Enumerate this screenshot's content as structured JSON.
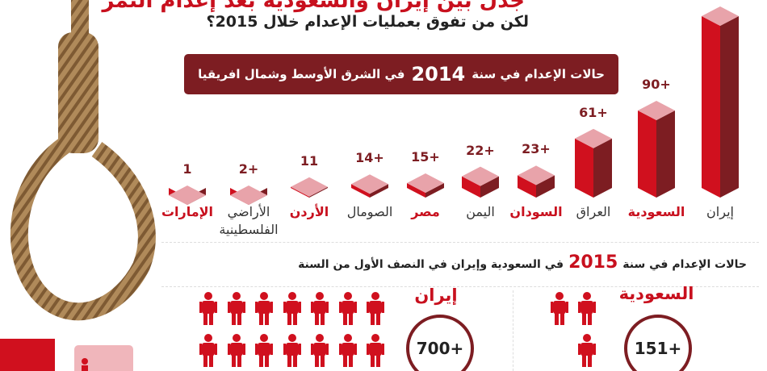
{
  "header": {
    "title": "جدل بين إيران والسعودية بعد إعدام النمر",
    "subtitle": "لكن من تفوق بعمليات الإعدام خلال 2015؟"
  },
  "banner_2014": {
    "before": "حالات الإعدام في سنة",
    "year": "2014",
    "after": "في الشرق الأوسط وشمال افريقيا"
  },
  "section_2015": {
    "before": "حالات الإعدام في سنة",
    "year": "2015",
    "after": "في السعودية وإيران في النصف الأول من السنة"
  },
  "comparison": {
    "iran": {
      "label": "إيران",
      "value": "700+",
      "icons": 14
    },
    "saudi": {
      "label": "السعودية",
      "value": "151+",
      "icons": 3
    }
  },
  "colors": {
    "red": "#d0101e",
    "dark_red": "#7d1d22",
    "pink": "#e8a3aa"
  },
  "chart_data": {
    "type": "bar",
    "title": "",
    "categories": [
      "إيران",
      "السعودية",
      "العراق",
      "السودان",
      "اليمن",
      "مصر",
      "الصومال",
      "الأردن",
      "الأراضي الفلسطينية",
      "الإمارات"
    ],
    "value_labels": [
      null,
      "90+",
      "61+",
      "23+",
      "22+",
      "15+",
      "14+",
      "11",
      "2+",
      "1"
    ],
    "values": [
      null,
      90,
      61,
      23,
      22,
      15,
      14,
      11,
      2,
      1
    ],
    "highlighted": [
      false,
      true,
      false,
      true,
      false,
      true,
      false,
      true,
      false,
      true
    ],
    "grid": false,
    "legend": "none"
  }
}
